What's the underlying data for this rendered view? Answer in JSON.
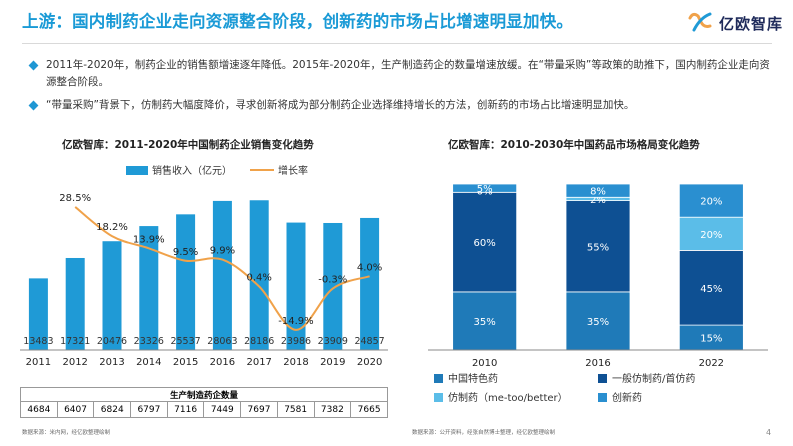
{
  "header": {
    "title": "上游：国内制药企业走向资源整合阶段，创新药的市场占比增速明显加快。",
    "logo_text": "亿欧智库"
  },
  "bullets": [
    "2011年-2020年，制药企业的销售额增速逐年降低。2015年-2020年，生产制造药企的数量增速放缓。在“带量采购”等政策的助推下，国内制药企业走向资源整合阶段。",
    "“带量采购”背景下，仿制药大幅度降价，寻求创新将成为部分制药企业选择维持增长的方法，创新药的市场占比增速明显加快。"
  ],
  "left_chart_title": "亿欧智库：2011-2020年中国制药企业销售变化趋势",
  "right_chart_title": "亿欧智库：2010-2030年中国药品市场格局变化趋势",
  "left_source": "数据来源：米内网，经亿欧整理绘制",
  "right_source": "数据来源：公开资料，经张自然博士整理，经亿欧整理绘制",
  "page_number": "4",
  "company_table": {
    "title": "生产制造药企数量",
    "values": [
      "4684",
      "6407",
      "6824",
      "6797",
      "7116",
      "7449",
      "7697",
      "7581",
      "7382",
      "7665"
    ]
  },
  "chart_data": [
    {
      "type": "bar",
      "title": "亿欧智库：2011-2020年中国制药企业销售变化趋势",
      "categories": [
        "2011",
        "2012",
        "2013",
        "2014",
        "2015",
        "2016",
        "2017",
        "2018",
        "2019",
        "2020"
      ],
      "series": [
        {
          "name": "销售收入（亿元）",
          "type": "bar",
          "values": [
            13483,
            17321,
            20476,
            23326,
            25537,
            28063,
            28186,
            23986,
            23909,
            24857
          ],
          "labels": [
            "13483",
            "17321",
            "20476",
            "23326",
            "25537",
            "28063",
            "28186",
            "23986",
            "23909",
            "24857"
          ]
        },
        {
          "name": "增长率",
          "type": "line",
          "values": [
            null,
            28.5,
            18.2,
            13.9,
            9.5,
            9.9,
            0.4,
            -14.9,
            -0.3,
            4.0
          ],
          "labels": [
            "",
            "28.5%",
            "18.2%",
            "13.9%",
            "9.5%",
            "9.9%",
            "0.4%",
            "-14.9%",
            "-0.3%",
            "4.0%"
          ]
        }
      ],
      "ylim": [
        0,
        32000
      ],
      "y2lim": [
        -22,
        38
      ],
      "legend": "top",
      "colors": {
        "bar": "#1f9ad6",
        "line": "#f0a24a"
      }
    },
    {
      "type": "bar",
      "stacked": true,
      "title": "亿欧智库：2010-2030年中国药品市场格局变化趋势",
      "categories": [
        "2010",
        "2016",
        "2022"
      ],
      "series": [
        {
          "name": "中国特色药",
          "color": "#1f7ab8",
          "values": [
            35,
            35,
            15
          ],
          "labels": [
            "35%",
            "35%",
            "15%"
          ]
        },
        {
          "name": "一般仿制药/首仿药",
          "color": "#0e5093",
          "values": [
            60,
            55,
            45
          ],
          "labels": [
            "60%",
            "55%",
            "45%"
          ]
        },
        {
          "name": "仿制药（me-too/better）",
          "color": "#5bbde8",
          "values": [
            0,
            2,
            20
          ],
          "labels": [
            "0%",
            "2%",
            "20%"
          ]
        },
        {
          "name": "创新药",
          "color": "#2a8fd0",
          "values": [
            5,
            8,
            20
          ],
          "labels": [
            "5%",
            "8%",
            "20%"
          ]
        }
      ],
      "ylim": [
        0,
        100
      ],
      "legend": "bottom"
    }
  ]
}
